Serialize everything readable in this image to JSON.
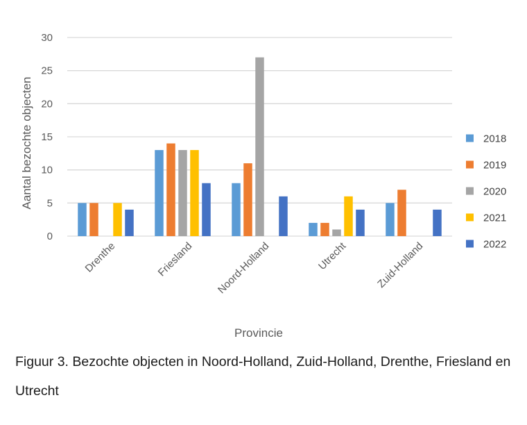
{
  "chart_data": {
    "type": "bar",
    "xlabel": "Provincie",
    "ylabel": "Aantal bezochte objecten",
    "ylim": [
      0,
      30
    ],
    "yticks": [
      0,
      5,
      10,
      15,
      20,
      25,
      30
    ],
    "grid": true,
    "legend_position": "right",
    "categories": [
      "Drenthe",
      "Friesland",
      "Noord-Holland",
      "Utrecht",
      "Zuid-Holland"
    ],
    "series": [
      {
        "name": "2018",
        "color": "#5B9BD5",
        "values": [
          5,
          13,
          8,
          2,
          5
        ]
      },
      {
        "name": "2019",
        "color": "#ED7D31",
        "values": [
          5,
          14,
          11,
          2,
          7
        ]
      },
      {
        "name": "2020",
        "color": "#A5A5A5",
        "values": [
          0,
          13,
          27,
          1,
          0
        ]
      },
      {
        "name": "2021",
        "color": "#FFC000",
        "values": [
          5,
          13,
          0,
          6,
          0
        ]
      },
      {
        "name": "2022",
        "color": "#4472C4",
        "values": [
          4,
          8,
          6,
          4,
          4
        ]
      }
    ]
  },
  "caption": {
    "text": "Figuur 3. Bezochte objecten in Noord-Holland, Zuid-Holland, Drenthe, Friesland en Utrecht"
  }
}
